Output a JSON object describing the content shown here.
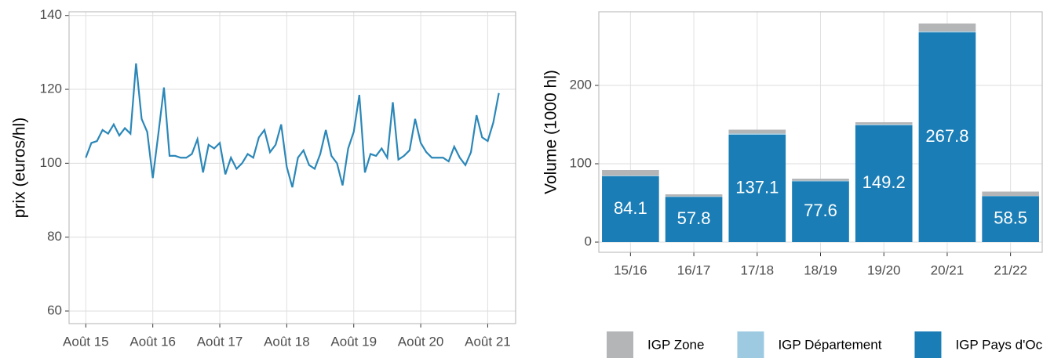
{
  "chart_data": [
    {
      "type": "line",
      "y_label": "prix (euros/hl)",
      "x": [
        "2015-08",
        "2015-09",
        "2015-10",
        "2015-11",
        "2015-12",
        "2016-01",
        "2016-02",
        "2016-03",
        "2016-04",
        "2016-05",
        "2016-06",
        "2016-07",
        "2016-08",
        "2016-09",
        "2016-10",
        "2016-11",
        "2016-12",
        "2017-01",
        "2017-02",
        "2017-03",
        "2017-04",
        "2017-05",
        "2017-06",
        "2017-07",
        "2017-08",
        "2017-09",
        "2017-10",
        "2017-11",
        "2017-12",
        "2018-01",
        "2018-02",
        "2018-03",
        "2018-04",
        "2018-05",
        "2018-06",
        "2018-07",
        "2018-08",
        "2018-09",
        "2018-10",
        "2018-11",
        "2018-12",
        "2019-01",
        "2019-02",
        "2019-03",
        "2019-04",
        "2019-05",
        "2019-06",
        "2019-07",
        "2019-08",
        "2019-09",
        "2019-10",
        "2019-11",
        "2019-12",
        "2020-01",
        "2020-02",
        "2020-03",
        "2020-04",
        "2020-05",
        "2020-06",
        "2020-07",
        "2020-08",
        "2020-09",
        "2020-10",
        "2020-11",
        "2020-12",
        "2021-01",
        "2021-02",
        "2021-03",
        "2021-04",
        "2021-05",
        "2021-06",
        "2021-07",
        "2021-08",
        "2021-09",
        "2021-10"
      ],
      "series": [
        {
          "color": "#2b87b8",
          "values": [
            101.5,
            105.5,
            106,
            109,
            108,
            110.5,
            107.5,
            109.5,
            108,
            127,
            112,
            108.5,
            96,
            108,
            120.5,
            102,
            102,
            101.5,
            101.5,
            102.5,
            106.5,
            97.5,
            105,
            104,
            105.5,
            97,
            101.5,
            98.5,
            100,
            102.5,
            101.5,
            107,
            109,
            103,
            105,
            110.5,
            99,
            93.5,
            101.5,
            103.5,
            99.5,
            98.5,
            102.5,
            109,
            102,
            100,
            94,
            104,
            108.5,
            118.5,
            97.5,
            102.5,
            102,
            104,
            101.5,
            116.5,
            101,
            102,
            103.5,
            112,
            105.5,
            103,
            101.5,
            101.5,
            101.5,
            100.5,
            104.5,
            101.5,
            99.5,
            103,
            113,
            107,
            106,
            111,
            119
          ]
        }
      ],
      "xlim": [
        "2015-05",
        "2022-01"
      ],
      "xticks": [
        {
          "value": "2015-08",
          "label": "Août 15"
        },
        {
          "value": "2016-08",
          "label": "Août 16"
        },
        {
          "value": "2017-08",
          "label": "Août 17"
        },
        {
          "value": "2018-08",
          "label": "Août 18"
        },
        {
          "value": "2019-08",
          "label": "Août 19"
        },
        {
          "value": "2020-08",
          "label": "Août 20"
        },
        {
          "value": "2021-08",
          "label": "Août 21"
        }
      ],
      "ylim": [
        56.6,
        141
      ],
      "yticks": [
        60,
        80,
        100,
        120,
        140
      ],
      "grid": true
    },
    {
      "type": "stacked_bar",
      "y_label": "Volume (1000 hl)",
      "categories": [
        "15/16",
        "16/17",
        "17/18",
        "18/19",
        "19/20",
        "20/21",
        "21/22"
      ],
      "series": [
        {
          "name": "IGP Zone",
          "color": "#b3b5b7",
          "values": [
            7.1,
            2.7,
            4.9,
            2.6,
            2.8,
            10.2,
            5.5
          ]
        },
        {
          "name": "IGP Département",
          "color": "#9ecae1",
          "values": [
            0.8,
            0.5,
            1.5,
            0.8,
            1.0,
            1.0,
            0.5
          ]
        },
        {
          "name": "IGP Pays d'Oc",
          "color": "#1a7db6",
          "values": [
            84.1,
            57.8,
            137.1,
            77.6,
            149.2,
            267.8,
            58.5
          ],
          "show_labels": true
        }
      ],
      "ylim": [
        -13,
        294
      ],
      "yticks": [
        0,
        100,
        200
      ],
      "grid": true,
      "legend": "bottom"
    }
  ]
}
